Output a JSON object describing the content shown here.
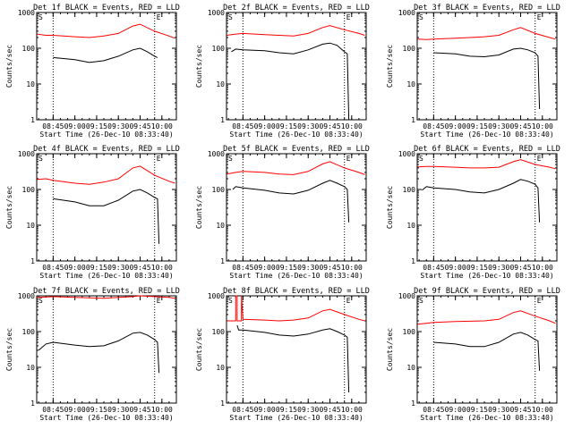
{
  "chart_data": [
    {
      "type": "line",
      "title": "Det 1f BLACK = Events, RED = LLD",
      "marker_s": "S",
      "marker_e": "E",
      "xlabel": "Start Time (26-Dec-10 08:33:40)",
      "ylabel": "Counts/sec",
      "x_ticks": [
        "08:45",
        "09:00",
        "09:15",
        "09:30",
        "09:45",
        "10:00"
      ],
      "y_ticks": [
        "1",
        "10",
        "100",
        "1000"
      ],
      "xlim": [
        "08:33:40",
        "10:10:00"
      ],
      "ylim": [
        1,
        1000
      ],
      "y_scale": "log",
      "grid": false,
      "dotted_lines_x": [
        "08:45",
        "09:55"
      ],
      "series": [
        {
          "color": "#ff0000",
          "x": [
            "08:34",
            "08:40",
            "08:45",
            "09:00",
            "09:10",
            "09:20",
            "09:30",
            "09:40",
            "09:45",
            "09:55",
            "10:05",
            "10:09"
          ],
          "values": [
            250,
            230,
            230,
            210,
            200,
            220,
            260,
            420,
            470,
            300,
            220,
            190
          ]
        },
        {
          "color": "#000000",
          "x": [
            "08:45",
            "09:00",
            "09:10",
            "09:20",
            "09:30",
            "09:40",
            "09:45",
            "09:50",
            "09:55",
            "09:57"
          ],
          "values": [
            55,
            48,
            40,
            45,
            60,
            90,
            100,
            80,
            60,
            55
          ]
        }
      ]
    },
    {
      "type": "line",
      "title": "Det 2f BLACK = Events, RED = LLD",
      "marker_s": "S",
      "marker_e": "E",
      "xlabel": "Start Time (26-Dec-10 08:33:40)",
      "ylabel": "Counts/sec",
      "x_ticks": [
        "08:45",
        "09:00",
        "09:15",
        "09:30",
        "09:45",
        "10:00"
      ],
      "y_ticks": [
        "1",
        "10",
        "100",
        "1000"
      ],
      "xlim": [
        "08:33:40",
        "10:10:00"
      ],
      "ylim": [
        1,
        1000
      ],
      "y_scale": "log",
      "grid": false,
      "dotted_lines_x": [
        "08:45",
        "09:55"
      ],
      "series": [
        {
          "color": "#ff0000",
          "x": [
            "08:34",
            "08:40",
            "08:45",
            "09:00",
            "09:10",
            "09:20",
            "09:30",
            "09:40",
            "09:45",
            "09:55",
            "10:05",
            "10:09"
          ],
          "values": [
            230,
            250,
            260,
            240,
            230,
            220,
            260,
            380,
            430,
            330,
            260,
            230
          ]
        },
        {
          "color": "#000000",
          "x": [
            "08:37",
            "08:40",
            "08:45",
            "09:00",
            "09:10",
            "09:20",
            "09:30",
            "09:40",
            "09:45",
            "09:50",
            "09:55",
            "09:57",
            "09:58"
          ],
          "values": [
            80,
            95,
            90,
            85,
            75,
            70,
            90,
            130,
            140,
            120,
            80,
            70,
            1
          ]
        }
      ]
    },
    {
      "type": "line",
      "title": "Det 3f BLACK = Events, RED = LLD",
      "marker_s": "S",
      "marker_e": "E",
      "xlabel": "Start Time (26-Dec-10 08:33:40)",
      "ylabel": "Counts/sec",
      "x_ticks": [
        "08:45",
        "09:00",
        "09:15",
        "09:30",
        "09:45",
        "10:00"
      ],
      "y_ticks": [
        "1",
        "10",
        "100",
        "1000"
      ],
      "xlim": [
        "08:33:40",
        "10:10:00"
      ],
      "ylim": [
        1,
        1000
      ],
      "y_scale": "log",
      "grid": false,
      "dotted_lines_x": [
        "08:45",
        "09:55"
      ],
      "series": [
        {
          "color": "#ff0000",
          "x": [
            "08:34",
            "08:40",
            "08:45",
            "09:00",
            "09:10",
            "09:20",
            "09:30",
            "09:40",
            "09:45",
            "09:55",
            "10:05",
            "10:09"
          ],
          "values": [
            180,
            175,
            180,
            190,
            200,
            210,
            230,
            330,
            380,
            260,
            200,
            180
          ]
        },
        {
          "color": "#000000",
          "x": [
            "08:45",
            "09:00",
            "09:10",
            "09:20",
            "09:30",
            "09:40",
            "09:45",
            "09:50",
            "09:55",
            "09:57",
            "09:58"
          ],
          "values": [
            75,
            70,
            60,
            58,
            65,
            95,
            100,
            90,
            75,
            60,
            2
          ]
        }
      ]
    },
    {
      "type": "line",
      "title": "Det 4f BLACK = Events, RED = LLD",
      "marker_s": "S",
      "marker_e": "E",
      "xlabel": "Start Time (26-Dec-10 08:33:40)",
      "ylabel": "Counts/sec",
      "x_ticks": [
        "08:45",
        "09:00",
        "09:15",
        "09:30",
        "09:45",
        "10:00"
      ],
      "y_ticks": [
        "1",
        "10",
        "100",
        "1000"
      ],
      "xlim": [
        "08:33:40",
        "10:10:00"
      ],
      "ylim": [
        1,
        1000
      ],
      "y_scale": "log",
      "grid": false,
      "dotted_lines_x": [
        "08:45",
        "09:55"
      ],
      "series": [
        {
          "color": "#ff0000",
          "x": [
            "08:34",
            "08:40",
            "08:45",
            "09:00",
            "09:10",
            "09:20",
            "09:30",
            "09:40",
            "09:45",
            "09:55",
            "10:05",
            "10:09"
          ],
          "values": [
            190,
            200,
            180,
            150,
            140,
            160,
            200,
            400,
            450,
            250,
            170,
            150
          ]
        },
        {
          "color": "#000000",
          "x": [
            "08:45",
            "09:00",
            "09:10",
            "09:20",
            "09:30",
            "09:40",
            "09:45",
            "09:50",
            "09:55",
            "09:57",
            "09:58"
          ],
          "values": [
            55,
            45,
            35,
            35,
            50,
            90,
            100,
            80,
            60,
            55,
            3
          ]
        }
      ]
    },
    {
      "type": "line",
      "title": "Det 5f BLACK = Events, RED = LLD",
      "marker_s": "S",
      "marker_e": "E",
      "xlabel": "Start Time (26-Dec-10 08:33:40)",
      "ylabel": "Counts/sec",
      "x_ticks": [
        "08:45",
        "09:00",
        "09:15",
        "09:30",
        "09:45",
        "10:00"
      ],
      "y_ticks": [
        "1",
        "10",
        "100",
        "1000"
      ],
      "xlim": [
        "08:33:40",
        "10:10:00"
      ],
      "ylim": [
        1,
        1000
      ],
      "y_scale": "log",
      "grid": false,
      "dotted_lines_x": [
        "08:45",
        "09:55"
      ],
      "series": [
        {
          "color": "#ff0000",
          "x": [
            "08:34",
            "08:40",
            "08:45",
            "09:00",
            "09:10",
            "09:20",
            "09:30",
            "09:40",
            "09:45",
            "09:55",
            "10:05",
            "10:09"
          ],
          "values": [
            270,
            300,
            320,
            300,
            270,
            260,
            320,
            520,
            600,
            400,
            300,
            260
          ]
        },
        {
          "color": "#000000",
          "x": [
            "08:38",
            "08:40",
            "08:45",
            "09:00",
            "09:10",
            "09:20",
            "09:30",
            "09:40",
            "09:45",
            "09:50",
            "09:55",
            "09:57",
            "09:58"
          ],
          "values": [
            100,
            120,
            110,
            95,
            80,
            75,
            95,
            150,
            180,
            150,
            120,
            100,
            12
          ]
        }
      ]
    },
    {
      "type": "line",
      "title": "Det 6f BLACK = Events, RED = LLD",
      "marker_s": "S",
      "marker_e": "E",
      "xlabel": "Start Time (26-Dec-10 08:33:40)",
      "ylabel": "Counts/sec",
      "x_ticks": [
        "08:45",
        "09:00",
        "09:15",
        "09:30",
        "09:45",
        "10:00"
      ],
      "y_ticks": [
        "1",
        "10",
        "100",
        "1000"
      ],
      "xlim": [
        "08:33:40",
        "10:10:00"
      ],
      "ylim": [
        1,
        1000
      ],
      "y_scale": "log",
      "grid": false,
      "dotted_lines_x": [
        "08:45",
        "09:55"
      ],
      "series": [
        {
          "color": "#ff0000",
          "x": [
            "08:34",
            "08:40",
            "08:45",
            "09:00",
            "09:10",
            "09:20",
            "09:30",
            "09:40",
            "09:45",
            "09:55",
            "10:05",
            "10:09"
          ],
          "values": [
            430,
            440,
            440,
            420,
            400,
            400,
            420,
            600,
            680,
            500,
            420,
            380
          ]
        },
        {
          "color": "#000000",
          "x": [
            "08:37",
            "08:40",
            "08:45",
            "09:00",
            "09:10",
            "09:20",
            "09:30",
            "09:40",
            "09:45",
            "09:50",
            "09:55",
            "09:57",
            "09:58"
          ],
          "values": [
            95,
            120,
            110,
            100,
            85,
            80,
            100,
            150,
            190,
            170,
            140,
            110,
            12
          ]
        }
      ]
    },
    {
      "type": "line",
      "title": "Det 7f BLACK = Events, RED = LLD",
      "marker_s": "S",
      "marker_e": "E",
      "xlabel": "Start Time (26-Dec-10 08:33:40)",
      "ylabel": "Counts/sec",
      "x_ticks": [
        "08:45",
        "09:00",
        "09:15",
        "09:30",
        "09:45",
        "10:00"
      ],
      "y_ticks": [
        "1",
        "10",
        "100",
        "1000"
      ],
      "xlim": [
        "08:33:40",
        "10:10:00"
      ],
      "ylim": [
        1,
        1000
      ],
      "y_scale": "log",
      "grid": false,
      "dotted_lines_x": [
        "08:45",
        "09:55"
      ],
      "series": [
        {
          "color": "#ff0000",
          "x": [
            "08:34",
            "08:40",
            "08:45",
            "09:00",
            "09:10",
            "09:20",
            "09:30",
            "09:40",
            "09:45",
            "09:55",
            "10:05",
            "10:09"
          ],
          "values": [
            900,
            920,
            950,
            900,
            880,
            850,
            900,
            950,
            1000,
            950,
            900,
            850
          ]
        },
        {
          "color": "#000000",
          "x": [
            "08:35",
            "08:40",
            "08:45",
            "09:00",
            "09:10",
            "09:20",
            "09:30",
            "09:40",
            "09:45",
            "09:50",
            "09:55",
            "09:57",
            "09:58"
          ],
          "values": [
            30,
            45,
            50,
            42,
            38,
            40,
            55,
            90,
            95,
            80,
            60,
            50,
            7
          ]
        }
      ]
    },
    {
      "type": "line",
      "title": "Det 8f BLACK = Events, RED = LLD",
      "marker_s": "S",
      "marker_e": "E",
      "xlabel": "Start Time (26-Dec-10 08:33:40)",
      "ylabel": "Counts/sec",
      "x_ticks": [
        "08:45",
        "09:00",
        "09:15",
        "09:30",
        "09:45",
        "10:00"
      ],
      "y_ticks": [
        "1",
        "10",
        "100",
        "1000"
      ],
      "xlim": [
        "08:33:40",
        "10:10:00"
      ],
      "ylim": [
        1,
        1000
      ],
      "y_scale": "log",
      "grid": false,
      "dotted_lines_x": [
        "08:45",
        "09:55"
      ],
      "series": [
        {
          "color": "#ff0000",
          "x": [
            "08:34",
            "08:40",
            "08:40",
            "08:41",
            "08:41",
            "08:44",
            "08:44",
            "08:45",
            "09:00",
            "09:10",
            "09:20",
            "09:30",
            "09:40",
            "09:45",
            "09:55",
            "10:05",
            "10:09"
          ],
          "values": [
            200,
            200,
            1000,
            1000,
            200,
            200,
            1000,
            220,
            210,
            200,
            210,
            240,
            380,
            420,
            300,
            220,
            200
          ]
        },
        {
          "color": "#000000",
          "x": [
            "08:41",
            "08:42",
            "08:45",
            "09:00",
            "09:10",
            "09:20",
            "09:30",
            "09:40",
            "09:45",
            "09:50",
            "09:55",
            "09:57",
            "09:58"
          ],
          "values": [
            150,
            110,
            110,
            95,
            80,
            75,
            85,
            110,
            120,
            100,
            80,
            70,
            2
          ]
        }
      ]
    },
    {
      "type": "line",
      "title": "Det 9f BLACK = Events, RED = LLD",
      "marker_s": "S",
      "marker_e": "E",
      "xlabel": "Start Time (26-Dec-10 08:33:40)",
      "ylabel": "Counts/sec",
      "x_ticks": [
        "08:45",
        "09:00",
        "09:15",
        "09:30",
        "09:45",
        "10:00"
      ],
      "y_ticks": [
        "1",
        "10",
        "100",
        "1000"
      ],
      "xlim": [
        "08:33:40",
        "10:10:00"
      ],
      "ylim": [
        1,
        1000
      ],
      "y_scale": "log",
      "grid": false,
      "dotted_lines_x": [
        "08:45",
        "09:55"
      ],
      "series": [
        {
          "color": "#ff0000",
          "x": [
            "08:34",
            "08:40",
            "08:45",
            "09:00",
            "09:10",
            "09:20",
            "09:30",
            "09:40",
            "09:45",
            "09:55",
            "10:05",
            "10:09"
          ],
          "values": [
            160,
            170,
            180,
            190,
            195,
            200,
            220,
            340,
            380,
            270,
            200,
            170
          ]
        },
        {
          "color": "#000000",
          "x": [
            "08:45",
            "09:00",
            "09:10",
            "09:20",
            "09:30",
            "09:40",
            "09:45",
            "09:50",
            "09:55",
            "09:57",
            "09:58"
          ],
          "values": [
            50,
            45,
            38,
            38,
            50,
            85,
            95,
            80,
            60,
            55,
            8
          ]
        }
      ]
    }
  ]
}
